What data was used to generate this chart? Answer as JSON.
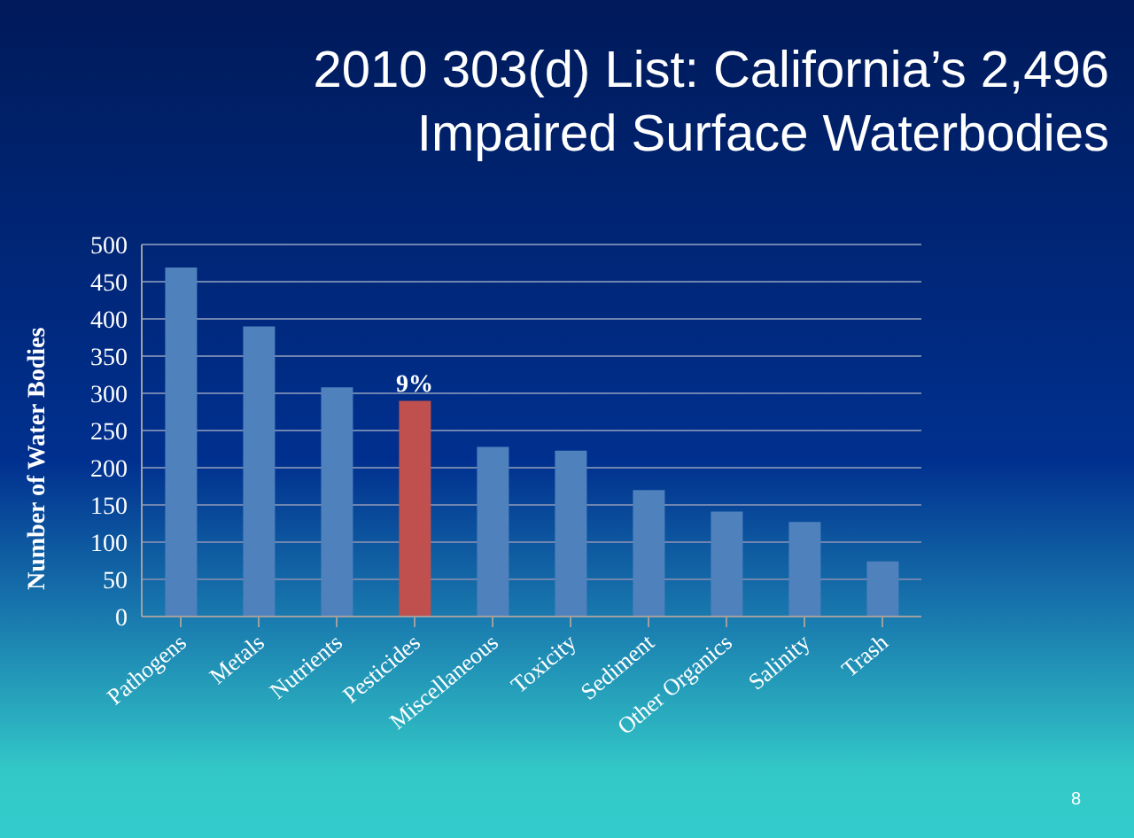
{
  "chart_data": {
    "type": "bar",
    "title": "2010 303(d) List: California’s 2,496 Impaired Surface Waterbodies",
    "ylabel": "Number of Water Bodies",
    "categories": [
      "Pathogens",
      "Metals",
      "Nutrients",
      "Pesticides",
      "Miscellaneous",
      "Toxicity",
      "Sediment",
      "Other Organics",
      "Salinity",
      "Trash"
    ],
    "values": [
      469,
      390,
      308,
      290,
      228,
      223,
      170,
      141,
      127,
      74
    ],
    "colors": [
      "#4f81bd",
      "#4f81bd",
      "#4f81bd",
      "#c0504d",
      "#4f81bd",
      "#4f81bd",
      "#4f81bd",
      "#4f81bd",
      "#4f81bd",
      "#4f81bd"
    ],
    "ylim": [
      0,
      500
    ],
    "yticks": [
      0,
      50,
      100,
      150,
      200,
      250,
      300,
      350,
      400,
      450,
      500
    ],
    "grid": "y",
    "annotations": [
      {
        "text": "9%",
        "x": "Pesticides",
        "y": 290
      },
      "8"
    ]
  }
}
